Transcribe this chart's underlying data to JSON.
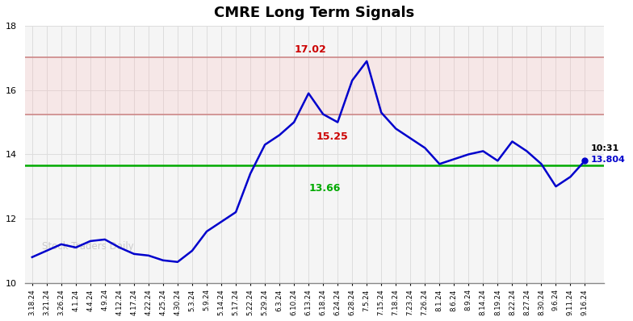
{
  "title": "CMRE Long Term Signals",
  "xlabels": [
    "3.18.24",
    "3.21.24",
    "3.26.24",
    "4.1.24",
    "4.4.24",
    "4.9.24",
    "4.12.24",
    "4.17.24",
    "4.22.24",
    "4.25.24",
    "4.30.24",
    "5.3.24",
    "5.9.24",
    "5.14.24",
    "5.17.24",
    "5.22.24",
    "5.29.24",
    "6.3.24",
    "6.10.24",
    "6.13.24",
    "6.18.24",
    "6.24.24",
    "6.28.24",
    "7.5.24",
    "7.15.24",
    "7.18.24",
    "7.23.24",
    "7.26.24",
    "8.1.24",
    "8.6.24",
    "8.9.24",
    "8.14.24",
    "8.19.24",
    "8.22.24",
    "8.27.24",
    "8.30.24",
    "9.6.24",
    "9.11.24",
    "9.16.24"
  ],
  "yvalues": [
    10.8,
    11.0,
    11.2,
    11.1,
    11.3,
    11.35,
    11.1,
    10.9,
    10.85,
    10.7,
    10.65,
    11.0,
    11.6,
    11.9,
    12.2,
    13.4,
    14.3,
    14.6,
    15.0,
    15.9,
    15.25,
    15.0,
    16.3,
    16.9,
    15.3,
    14.8,
    14.5,
    14.2,
    13.7,
    13.85,
    14.0,
    14.1,
    13.8,
    14.4,
    14.1,
    13.7,
    13.0,
    13.3,
    13.804
  ],
  "line_color": "#0000cc",
  "hline_green": 13.66,
  "hline_red1": 17.02,
  "hline_red2": 15.25,
  "green_color": "#00aa00",
  "red_color": "#cc0000",
  "pink_fill_color": "#ffcccc",
  "ylim": [
    10,
    18
  ],
  "yticks": [
    10,
    12,
    14,
    16,
    18
  ],
  "watermark": "Stock Traders Daily",
  "bg_color": "#ffffff",
  "plot_bg_color": "#f5f5f5",
  "grid_color": "#dddddd"
}
